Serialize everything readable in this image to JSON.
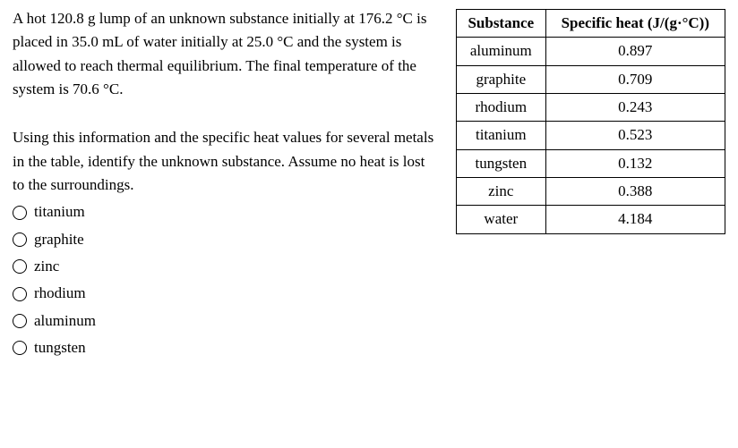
{
  "question": {
    "para1": "A hot 120.8 g lump of an unknown substance initially at 176.2 °C is placed in 35.0 mL of water initially at 25.0 °C and the system is allowed to reach thermal equilibrium. The final temperature of the system is 70.6 °C.",
    "para2": "Using this information and the specific heat values for several metals in the table, identify the unknown substance. Assume no heat is lost to the surroundings."
  },
  "table": {
    "header": {
      "col1": "Substance",
      "col2": "Specific heat (J/(g·°C))"
    },
    "rows": [
      {
        "substance": "aluminum",
        "value": "0.897"
      },
      {
        "substance": "graphite",
        "value": "0.709"
      },
      {
        "substance": "rhodium",
        "value": "0.243"
      },
      {
        "substance": "titanium",
        "value": "0.523"
      },
      {
        "substance": "tungsten",
        "value": "0.132"
      },
      {
        "substance": "zinc",
        "value": "0.388"
      },
      {
        "substance": "water",
        "value": "4.184"
      }
    ]
  },
  "options": [
    "titanium",
    "graphite",
    "zinc",
    "rhodium",
    "aluminum",
    "tungsten"
  ]
}
